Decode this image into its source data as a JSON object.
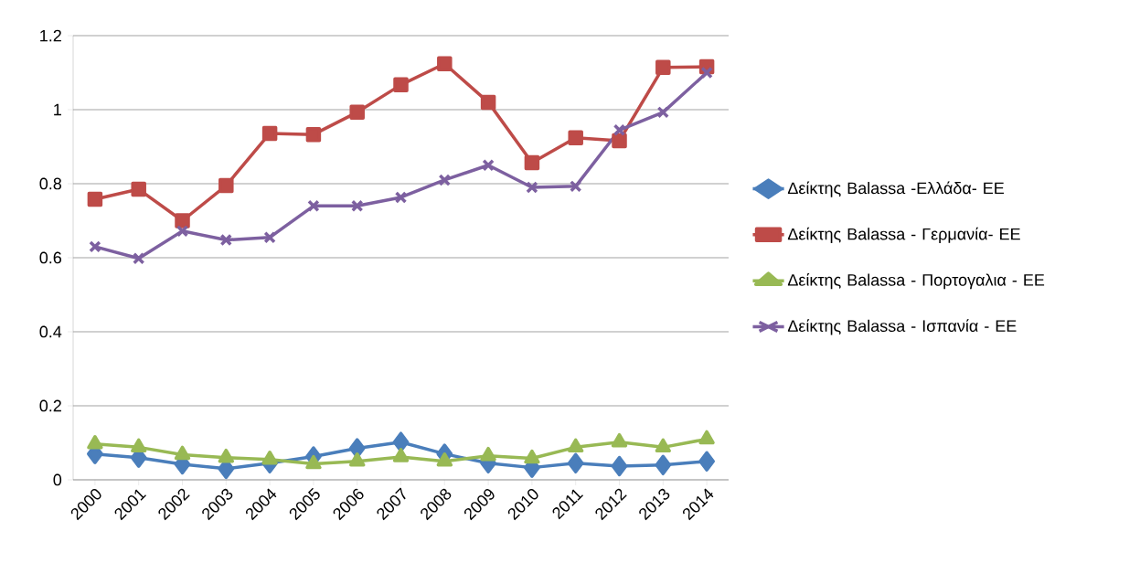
{
  "chart_data": {
    "type": "line",
    "categories": [
      "2000",
      "2001",
      "2002",
      "2003",
      "2004",
      "2005",
      "2006",
      "2007",
      "2008",
      "2009",
      "2010",
      "2011",
      "2012",
      "2013",
      "2014"
    ],
    "series": [
      {
        "name": "Δείκτης Balassa -Ελλάδα- ΕΕ",
        "color": "#4a7ebb",
        "marker": "diamond",
        "values": [
          0.07,
          0.06,
          0.042,
          0.03,
          0.045,
          0.063,
          0.085,
          0.102,
          0.07,
          0.045,
          0.033,
          0.045,
          0.037,
          0.04,
          0.05
        ]
      },
      {
        "name": "Δείκτης Balassa - Γερμανία- ΕΕ",
        "color": "#be4b48",
        "marker": "square",
        "values": [
          0.758,
          0.785,
          0.7,
          0.795,
          0.936,
          0.933,
          0.993,
          1.067,
          1.124,
          1.02,
          0.857,
          0.924,
          0.916,
          1.114,
          1.116
        ]
      },
      {
        "name": "Δείκτης Balassa - Πορτογαλια - ΕΕ",
        "color": "#98b954",
        "marker": "triangle",
        "values": [
          0.097,
          0.088,
          0.068,
          0.06,
          0.055,
          0.043,
          0.05,
          0.062,
          0.05,
          0.065,
          0.058,
          0.088,
          0.102,
          0.088,
          0.11
        ]
      },
      {
        "name": "Δείκτης Balassa - Ισπανία - ΕΕ",
        "color": "#7d60a0",
        "marker": "cross",
        "values": [
          0.63,
          0.598,
          0.672,
          0.648,
          0.655,
          0.74,
          0.74,
          0.763,
          0.81,
          0.85,
          0.79,
          0.793,
          0.945,
          0.993,
          1.1
        ]
      }
    ],
    "ylim": [
      0,
      1.2
    ],
    "yticks": [
      0,
      0.2,
      0.4,
      0.6,
      0.8,
      1,
      1.2
    ],
    "grid": "y",
    "legend": "right",
    "line_style": "solid"
  }
}
